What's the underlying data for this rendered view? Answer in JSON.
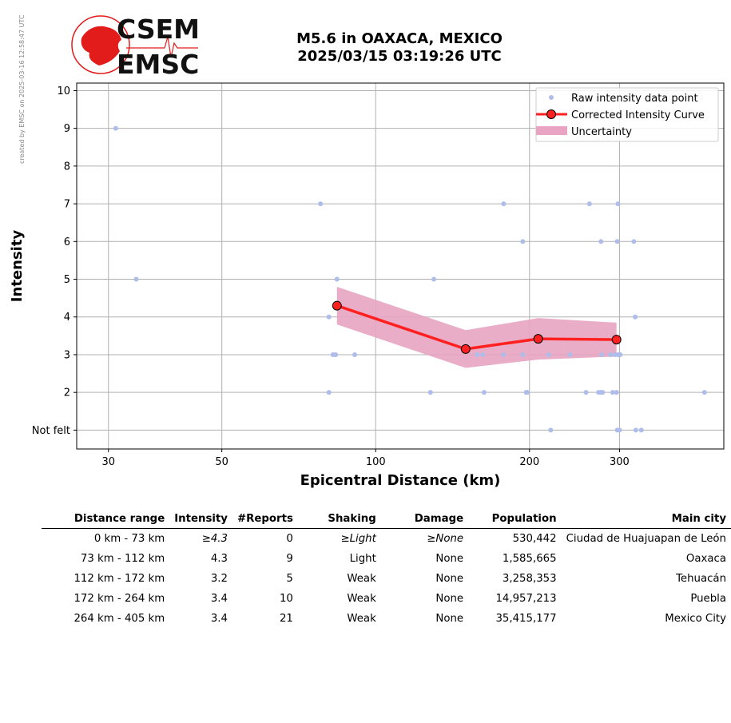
{
  "credit": "created by EMSC on 2025-03-16 12:58:47 UTC",
  "logo": {
    "line1": "CSEM",
    "line2": "EMSC"
  },
  "title": {
    "line1": "M5.6 in OAXACA, MEXICO",
    "line2": "2025/03/15 03:19:26 UTC"
  },
  "colors": {
    "raw": "#aebde9",
    "curve": "#ff2020",
    "marker": "#ff2020",
    "uncertainty": "#e8a4c2",
    "logo_red": "#e21b1b"
  },
  "chart_data": {
    "type": "scatter",
    "title": "M5.6 in OAXACA, MEXICO 2025/03/15 03:19:26 UTC",
    "xlabel": "Epicentral Distance (km)",
    "ylabel": "Intensity",
    "xscale": "log",
    "xlim": [
      26,
      480
    ],
    "ylim": [
      0.5,
      10.2
    ],
    "xticks": [
      30,
      50,
      100,
      200,
      300
    ],
    "xtick_labels": [
      "30",
      "50",
      "100",
      "200",
      "300"
    ],
    "yticks": [
      1,
      2,
      3,
      4,
      5,
      6,
      7,
      8,
      9,
      10
    ],
    "ytick_labels": [
      "Not felt",
      "2",
      "3",
      "4",
      "5",
      "6",
      "7",
      "8",
      "9",
      "10"
    ],
    "grid": true,
    "legend": {
      "position": "top-right",
      "entries": [
        "Raw intensity data point",
        "Corrected Intensity Curve",
        "Uncertainty"
      ]
    },
    "raw_points": [
      [
        31,
        9
      ],
      [
        34,
        5
      ],
      [
        78,
        7
      ],
      [
        84,
        5
      ],
      [
        81,
        4
      ],
      [
        81,
        2
      ],
      [
        82.5,
        3
      ],
      [
        83.5,
        3
      ],
      [
        91,
        3
      ],
      [
        128,
        2
      ],
      [
        130,
        5
      ],
      [
        158,
        3
      ],
      [
        162,
        3
      ],
      [
        163,
        2
      ],
      [
        178,
        7
      ],
      [
        178,
        3
      ],
      [
        194,
        6
      ],
      [
        194,
        3
      ],
      [
        197,
        2
      ],
      [
        198,
        2
      ],
      [
        218,
        3
      ],
      [
        220,
        1
      ],
      [
        240,
        3
      ],
      [
        258,
        2
      ],
      [
        262,
        7
      ],
      [
        273,
        2
      ],
      [
        276,
        6
      ],
      [
        276,
        2
      ],
      [
        277,
        3
      ],
      [
        278,
        2
      ],
      [
        288,
        3
      ],
      [
        291,
        2
      ],
      [
        294,
        3
      ],
      [
        296,
        2
      ],
      [
        297,
        6
      ],
      [
        297,
        1
      ],
      [
        298,
        7
      ],
      [
        298,
        3
      ],
      [
        300,
        1
      ],
      [
        301,
        3
      ],
      [
        320,
        6
      ],
      [
        322,
        4
      ],
      [
        323,
        1
      ],
      [
        331,
        1
      ],
      [
        440,
        2
      ]
    ],
    "series": [
      {
        "name": "Corrected Intensity Curve",
        "x": [
          84,
          150,
          208,
          296
        ],
        "y": [
          4.3,
          3.15,
          3.42,
          3.4
        ]
      },
      {
        "name": "Uncertainty",
        "x": [
          84,
          150,
          208,
          296
        ],
        "upper": [
          4.8,
          3.65,
          3.97,
          3.85
        ],
        "lower": [
          3.8,
          2.65,
          2.87,
          2.95
        ]
      }
    ]
  },
  "table": {
    "headers": [
      "Distance range",
      "Intensity",
      "#Reports",
      "Shaking",
      "Damage",
      "Population",
      "Main city"
    ],
    "rows": [
      {
        "range": "0 km -   73 km",
        "intensity": "≥4.3",
        "reports": "0",
        "shaking": "≥Light",
        "damage": "≥None",
        "population": "530,442",
        "city": "Ciudad de Huajuapan de León"
      },
      {
        "range": "73 km -  112 km",
        "intensity": "4.3",
        "reports": "9",
        "shaking": "Light",
        "damage": "None",
        "population": "1,585,665",
        "city": "Oaxaca"
      },
      {
        "range": "112 km -  172 km",
        "intensity": "3.2",
        "reports": "5",
        "shaking": "Weak",
        "damage": "None",
        "population": "3,258,353",
        "city": "Tehuacán"
      },
      {
        "range": "172 km -  264 km",
        "intensity": "3.4",
        "reports": "10",
        "shaking": "Weak",
        "damage": "None",
        "population": "14,957,213",
        "city": "Puebla"
      },
      {
        "range": "264 km -  405 km",
        "intensity": "3.4",
        "reports": "21",
        "shaking": "Weak",
        "damage": "None",
        "population": "35,415,177",
        "city": "Mexico City"
      }
    ]
  }
}
